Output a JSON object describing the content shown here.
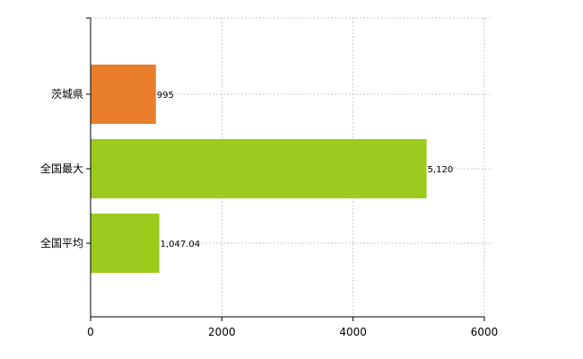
{
  "chart_data": {
    "type": "bar",
    "orientation": "horizontal",
    "categories": [
      "茨城県",
      "全国最大",
      "全国平均"
    ],
    "values": [
      995,
      5120,
      1047.04
    ],
    "value_labels": [
      "995",
      "5,120",
      "1,047.04"
    ],
    "bar_colors": [
      "#e87d2a",
      "#9dcb1d",
      "#9dcb1d"
    ],
    "xlim": [
      0,
      6000
    ],
    "x_ticks": [
      0,
      2000,
      4000,
      6000
    ],
    "x_tick_labels": [
      "0",
      "2000",
      "4000",
      "6000"
    ],
    "grid": true,
    "legend": "none"
  }
}
